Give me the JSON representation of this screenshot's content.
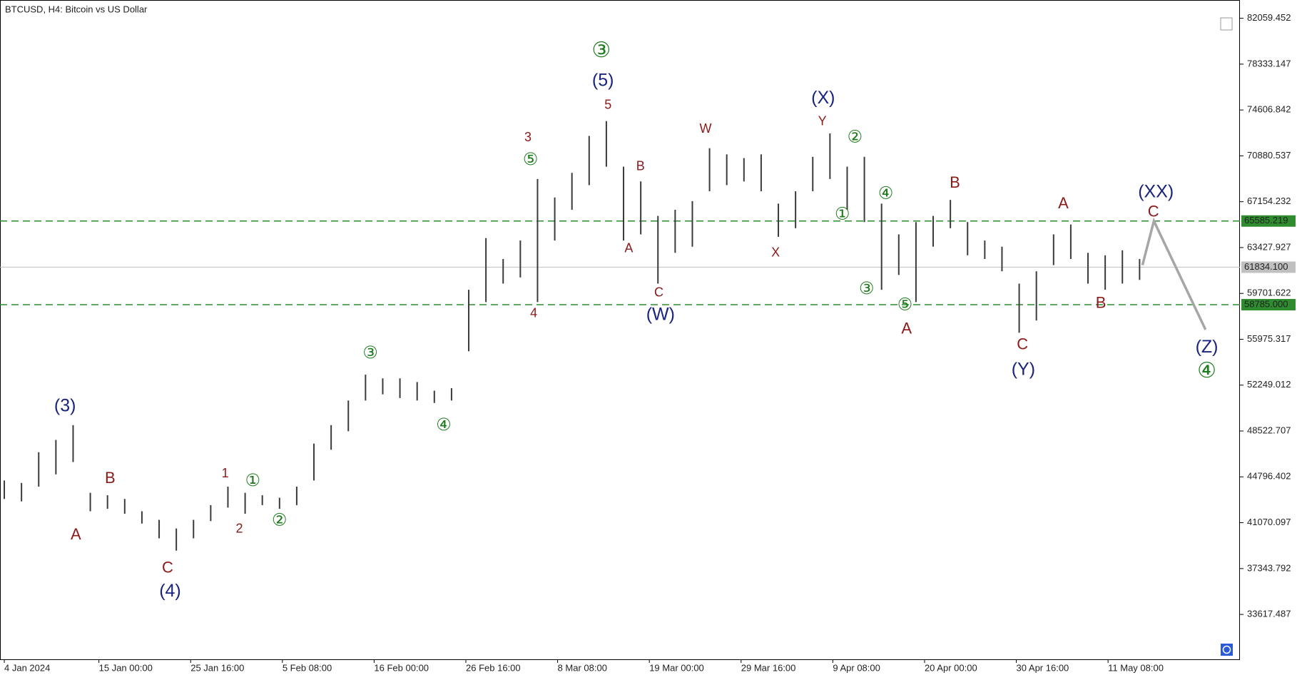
{
  "chart_data": {
    "type": "hl-bars",
    "title": "BTCUSD, H4:  Bitcoin vs US Dollar",
    "x": [
      "2024-01-04 00:00",
      "2024-01-06 00:00",
      "2024-01-08 00:00",
      "2024-01-10 00:00",
      "2024-01-12 00:00",
      "2024-01-14 00:00",
      "2024-01-16 00:00",
      "2024-01-18 00:00",
      "2024-01-20 00:00",
      "2024-01-22 00:00",
      "2024-01-24 00:00",
      "2024-01-26 00:00",
      "2024-01-28 00:00",
      "2024-01-30 00:00",
      "2024-02-01 00:00",
      "2024-02-03 00:00",
      "2024-02-05 00:00",
      "2024-02-07 00:00",
      "2024-02-09 00:00",
      "2024-02-11 00:00",
      "2024-02-13 00:00",
      "2024-02-15 00:00",
      "2024-02-17 00:00",
      "2024-02-19 00:00",
      "2024-02-21 00:00",
      "2024-02-23 00:00",
      "2024-02-25 00:00",
      "2024-02-27 00:00",
      "2024-02-29 00:00",
      "2024-03-02 00:00",
      "2024-03-04 00:00",
      "2024-03-06 00:00",
      "2024-03-08 00:00",
      "2024-03-10 00:00",
      "2024-03-12 00:00",
      "2024-03-14 00:00",
      "2024-03-16 00:00",
      "2024-03-18 00:00",
      "2024-03-20 00:00",
      "2024-03-22 00:00",
      "2024-03-24 00:00",
      "2024-03-26 00:00",
      "2024-03-28 00:00",
      "2024-03-30 00:00",
      "2024-04-01 00:00",
      "2024-04-03 00:00",
      "2024-04-05 00:00",
      "2024-04-07 00:00",
      "2024-04-09 00:00",
      "2024-04-11 00:00",
      "2024-04-13 00:00",
      "2024-04-15 00:00",
      "2024-04-17 00:00",
      "2024-04-19 00:00",
      "2024-04-21 00:00",
      "2024-04-23 00:00",
      "2024-04-25 00:00",
      "2024-04-27 00:00",
      "2024-04-29 00:00",
      "2024-05-01 00:00",
      "2024-05-03 00:00",
      "2024-05-05 00:00",
      "2024-05-07 00:00",
      "2024-05-09 00:00",
      "2024-05-11 00:00",
      "2024-05-13 00:00",
      "2024-05-15 00:00"
    ],
    "high": [
      44500,
      44300,
      46800,
      47800,
      49000,
      43500,
      43300,
      43000,
      42000,
      41300,
      40600,
      41300,
      42500,
      44000,
      43500,
      43300,
      43100,
      44000,
      47500,
      49000,
      51000,
      53100,
      52800,
      52800,
      52500,
      51800,
      52000,
      60000,
      64200,
      62500,
      64000,
      69000,
      67500,
      69500,
      72500,
      73700,
      70000,
      68800,
      66000,
      66500,
      67200,
      71500,
      71000,
      70700,
      71000,
      67000,
      68000,
      70800,
      72700,
      70000,
      70800,
      67000,
      64500,
      65500,
      66000,
      67300,
      65500,
      64000,
      63500,
      60500,
      61500,
      64500,
      65300,
      63000,
      62800,
      63200,
      62500
    ],
    "low": [
      43000,
      42800,
      44000,
      45000,
      46000,
      42000,
      42200,
      41800,
      41000,
      39800,
      38800,
      39800,
      41200,
      42300,
      41800,
      42500,
      42200,
      42500,
      44500,
      47000,
      48500,
      51000,
      51500,
      51200,
      51000,
      50800,
      51000,
      55000,
      59000,
      60500,
      61000,
      59000,
      64000,
      66500,
      68500,
      70000,
      64000,
      64500,
      60500,
      63000,
      63500,
      68000,
      68500,
      68800,
      68000,
      64300,
      65000,
      68000,
      69000,
      66500,
      65500,
      60000,
      61200,
      59000,
      63500,
      65000,
      62800,
      62500,
      61500,
      56500,
      57500,
      62000,
      62500,
      60500,
      60000,
      60500,
      60800
    ],
    "color": "#3a3a3a",
    "projection": {
      "x": [
        "2024-05-15 08:00",
        "2024-05-16 16:00",
        "2024-05-22 16:00"
      ],
      "values": [
        62000,
        65585.219,
        56757
      ],
      "color": "#a6a6a6"
    },
    "levels": [
      65585.219,
      {
        "value": 58785,
        "label": "58785.000"
      }
    ],
    "level_color": "#2e8b2e",
    "current_price": {
      "value": 61834.1,
      "label": "61834.100"
    },
    "current_price_color": "#c0c0c0",
    "xlim": [
      "2024-01-03 12:00",
      "2024-05-26 16:00"
    ],
    "xticks": [
      {
        "value": "2024-01-04 00:00",
        "label": "4 Jan 2024"
      },
      {
        "value": "2024-01-15 00:00",
        "label": "15 Jan 00:00"
      },
      {
        "value": "2024-01-25 16:00",
        "label": "25 Jan 16:00"
      },
      {
        "value": "2024-02-05 08:00",
        "label": "5 Feb 08:00"
      },
      {
        "value": "2024-02-16 00:00",
        "label": "16 Feb 00:00"
      },
      {
        "value": "2024-02-26 16:00",
        "label": "26 Feb 16:00"
      },
      {
        "value": "2024-03-08 08:00",
        "label": "8 Mar 08:00"
      },
      {
        "value": "2024-03-19 00:00",
        "label": "19 Mar 00:00"
      },
      {
        "value": "2024-03-29 16:00",
        "label": "29 Mar 16:00"
      },
      {
        "value": "2024-04-09 08:00",
        "label": "9 Apr 08:00"
      },
      {
        "value": "2024-04-20 00:00",
        "label": "20 Apr 00:00"
      },
      {
        "value": "2024-04-30 16:00",
        "label": "30 Apr 16:00"
      },
      {
        "value": "2024-05-11 08:00",
        "label": "11 May 08:00"
      }
    ],
    "ylim": [
      29970,
      83544
    ],
    "yticks": [
      82059.452,
      78333.147,
      74606.842,
      70880.537,
      67154.232,
      63427.927,
      59701.622,
      55975.317,
      52249.012,
      48522.707,
      44796.402,
      41070.097,
      37343.792,
      33617.487
    ],
    "annotations": [
      {
        "text": "(3)",
        "color": "#1a237e"
      },
      {
        "text": "B",
        "color": "#8b1a1a"
      },
      {
        "text": "A",
        "color": "#8b1a1a"
      },
      {
        "text": "C",
        "color": "#8b1a1a"
      },
      {
        "text": "(4)",
        "color": "#1a237e"
      },
      {
        "text": "1",
        "color": "#8b1a1a"
      },
      {
        "text": "①",
        "color": "#1e7b1e"
      },
      {
        "text": "2",
        "color": "#8b1a1a"
      },
      {
        "text": "②",
        "color": "#1e7b1e"
      },
      {
        "text": "③",
        "color": "#1e7b1e"
      },
      {
        "text": "④",
        "color": "#1e7b1e"
      },
      {
        "text": "3",
        "color": "#8b1a1a"
      },
      {
        "text": "⑤",
        "color": "#1e7b1e"
      },
      {
        "text": "4",
        "color": "#8b1a1a"
      },
      {
        "text": "③",
        "color": "#1e7b1e"
      },
      {
        "text": "(5)",
        "color": "#1a237e"
      },
      {
        "text": "5",
        "color": "#8b1a1a"
      },
      {
        "text": "B",
        "color": "#8b1a1a"
      },
      {
        "text": "A",
        "color": "#8b1a1a"
      },
      {
        "text": "C",
        "color": "#8b1a1a"
      },
      {
        "text": "(W)",
        "color": "#1a237e"
      },
      {
        "text": "W",
        "color": "#8b1a1a"
      },
      {
        "text": "X",
        "color": "#8b1a1a"
      },
      {
        "text": "(X)",
        "color": "#1a237e"
      },
      {
        "text": "Y",
        "color": "#8b1a1a"
      },
      {
        "text": "②",
        "color": "#1e7b1e"
      },
      {
        "text": "①",
        "color": "#1e7b1e"
      },
      {
        "text": "④",
        "color": "#1e7b1e"
      },
      {
        "text": "③",
        "color": "#1e7b1e"
      },
      {
        "text": "⑤",
        "color": "#1e7b1e"
      },
      {
        "text": "A",
        "color": "#8b1a1a"
      },
      {
        "text": "B",
        "color": "#8b1a1a"
      },
      {
        "text": "C",
        "color": "#8b1a1a"
      },
      {
        "text": "(Y)",
        "color": "#1a237e"
      },
      {
        "text": "A",
        "color": "#8b1a1a"
      },
      {
        "text": "B",
        "color": "#8b1a1a"
      },
      {
        "text": "(XX)",
        "color": "#1a237e"
      },
      {
        "text": "C",
        "color": "#8b1a1a"
      },
      {
        "text": "(Z)",
        "color": "#1a237e"
      },
      {
        "text": "④",
        "color": "#1e7b1e"
      }
    ]
  }
}
